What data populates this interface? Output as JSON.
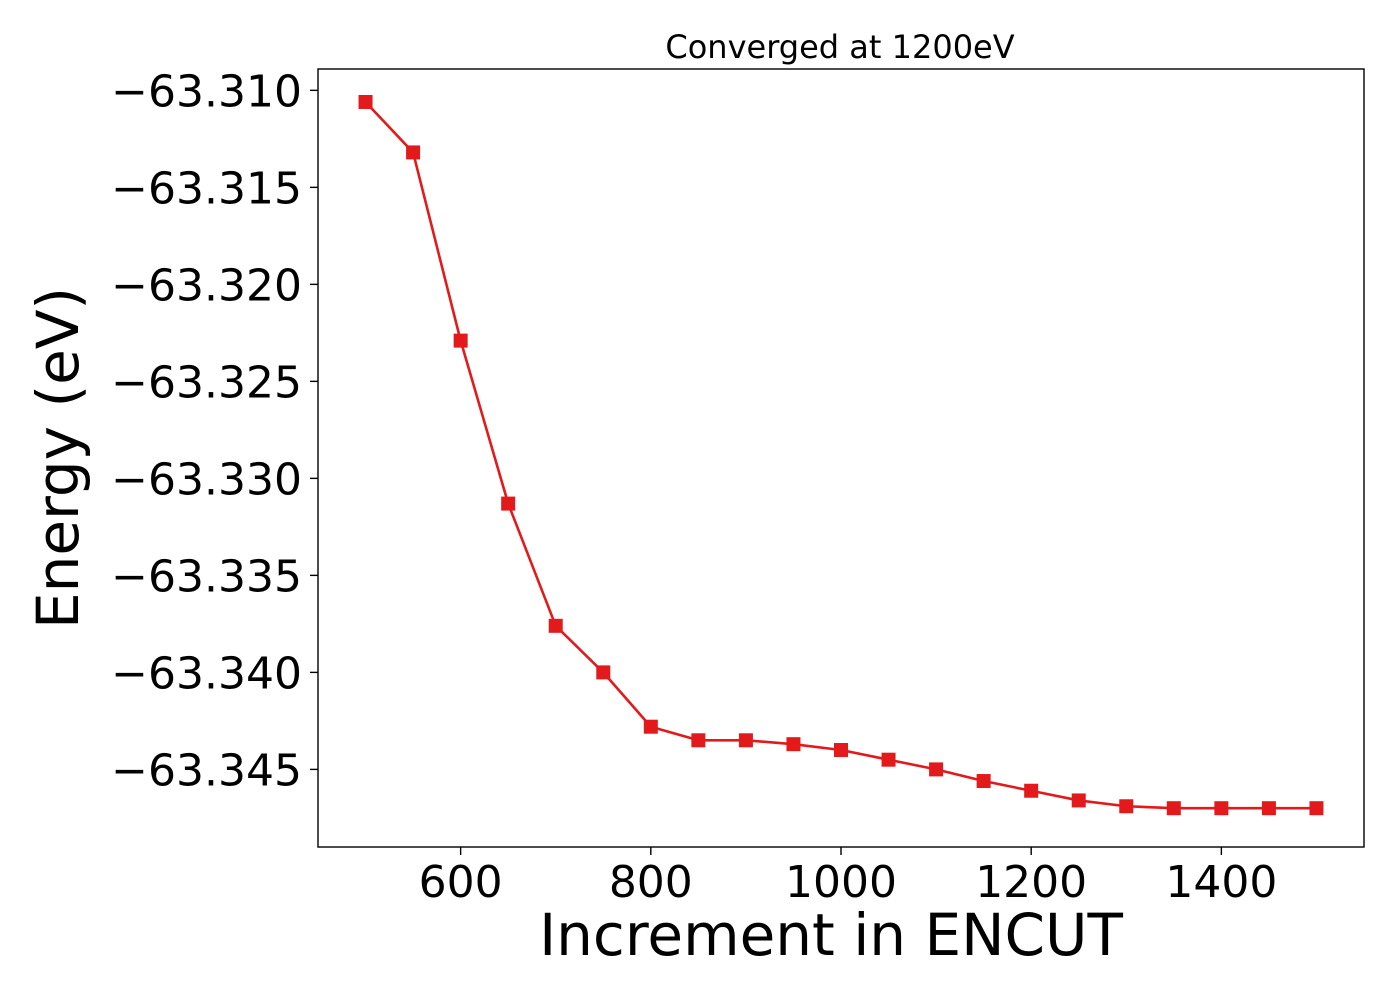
{
  "chart_data": {
    "type": "line",
    "title": "Converged at 1200eV",
    "xlabel": "Increment in ENCUT",
    "ylabel": "Energy (eV)",
    "xlim": [
      450,
      1550
    ],
    "ylim": [
      -63.349,
      -63.3089
    ],
    "x_ticks": [
      600,
      800,
      1000,
      1200,
      1400
    ],
    "x_tick_labels": [
      "600",
      "800",
      "1000",
      "1200",
      "1400"
    ],
    "y_ticks": [
      -63.31,
      -63.315,
      -63.32,
      -63.325,
      -63.33,
      -63.335,
      -63.34,
      -63.345
    ],
    "y_tick_labels": [
      "−63.310",
      "−63.315",
      "−63.320",
      "−63.325",
      "−63.330",
      "−63.335",
      "−63.340",
      "−63.345"
    ],
    "grid": false,
    "series": [
      {
        "color": "#e31a1c",
        "marker": "square",
        "x": [
          500,
          550,
          600,
          650,
          700,
          750,
          800,
          850,
          900,
          950,
          1000,
          1050,
          1100,
          1150,
          1200,
          1250,
          1300,
          1350,
          1400,
          1450,
          1500
        ],
        "y": [
          -63.3106,
          -63.3132,
          -63.3229,
          -63.3313,
          -63.3376,
          -63.34,
          -63.3428,
          -63.3435,
          -63.3435,
          -63.3437,
          -63.344,
          -63.3445,
          -63.345,
          -63.3456,
          -63.3461,
          -63.3466,
          -63.3469,
          -63.347,
          -63.347,
          -63.347,
          -63.347
        ]
      }
    ]
  }
}
